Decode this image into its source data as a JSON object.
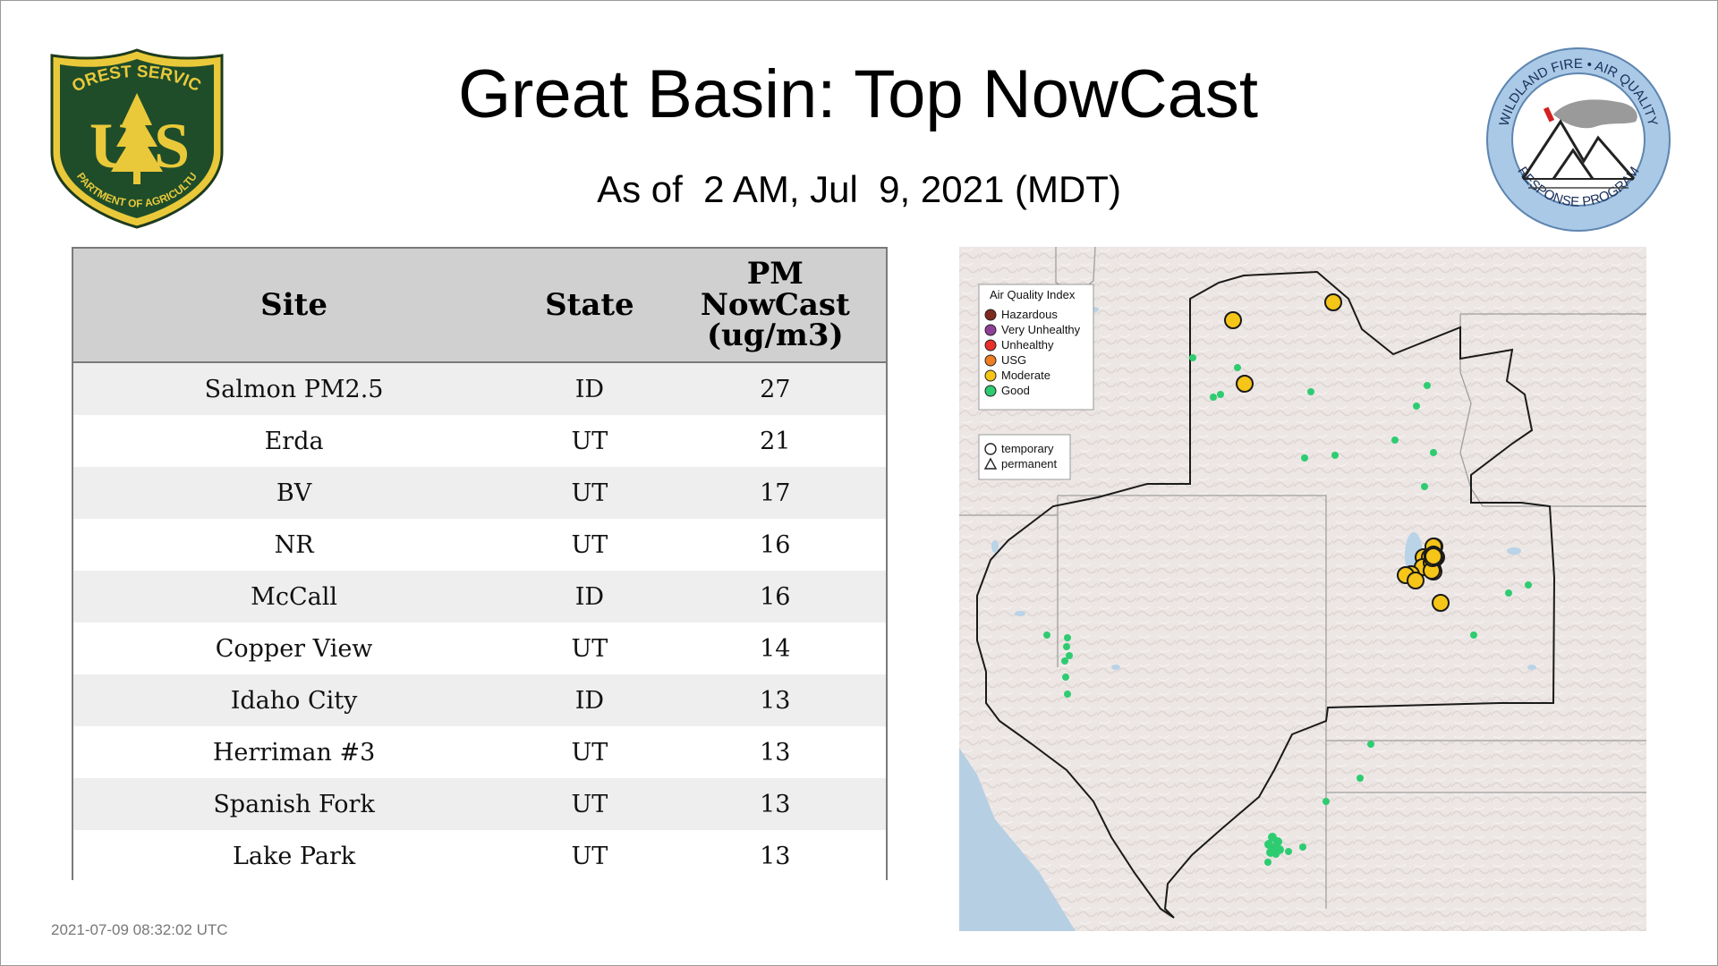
{
  "title": "Great Basin: Top NowCast",
  "subtitle": "As of  2 AM, Jul  9, 2021 (MDT)",
  "timestamp": "2021-07-09 08:32:02 UTC",
  "logos": {
    "forest_service": {
      "text_top": "FOREST SERVICE",
      "letters": "US",
      "text_bottom": "DEPARTMENT OF AGRICULTURE"
    },
    "wildland_fire": {
      "text_top": "WILDLAND FIRE • AIR QUALITY",
      "text_bottom": "RESPONSE PROGRAM"
    }
  },
  "table": {
    "headers": {
      "site": "Site",
      "state": "State",
      "pm_line1": "PM",
      "pm_line2": "NowCast",
      "pm_line3": "(ug/m3)"
    },
    "rows": [
      {
        "site": "Salmon PM2.5",
        "state": "ID",
        "value": "27"
      },
      {
        "site": "Erda",
        "state": "UT",
        "value": "21"
      },
      {
        "site": "BV",
        "state": "UT",
        "value": "17"
      },
      {
        "site": "NR",
        "state": "UT",
        "value": "16"
      },
      {
        "site": "McCall",
        "state": "ID",
        "value": "16"
      },
      {
        "site": "Copper View",
        "state": "UT",
        "value": "14"
      },
      {
        "site": "Idaho City",
        "state": "ID",
        "value": "13"
      },
      {
        "site": "Herriman #3",
        "state": "UT",
        "value": "13"
      },
      {
        "site": "Spanish Fork",
        "state": "UT",
        "value": "13"
      },
      {
        "site": "Lake Park",
        "state": "UT",
        "value": "13"
      }
    ]
  },
  "map": {
    "legend_aqi": {
      "title": "Air Quality Index",
      "items": [
        {
          "label": "Hazardous",
          "color": "#7e2a1e"
        },
        {
          "label": "Very Unhealthy",
          "color": "#8f3f97"
        },
        {
          "label": "Unhealthy",
          "color": "#e8312a"
        },
        {
          "label": "USG",
          "color": "#f07e23"
        },
        {
          "label": "Moderate",
          "color": "#f5c518"
        },
        {
          "label": "Good",
          "color": "#2ecc71"
        }
      ]
    },
    "legend_type": {
      "temporary": "temporary",
      "permanent": "permanent"
    }
  }
}
